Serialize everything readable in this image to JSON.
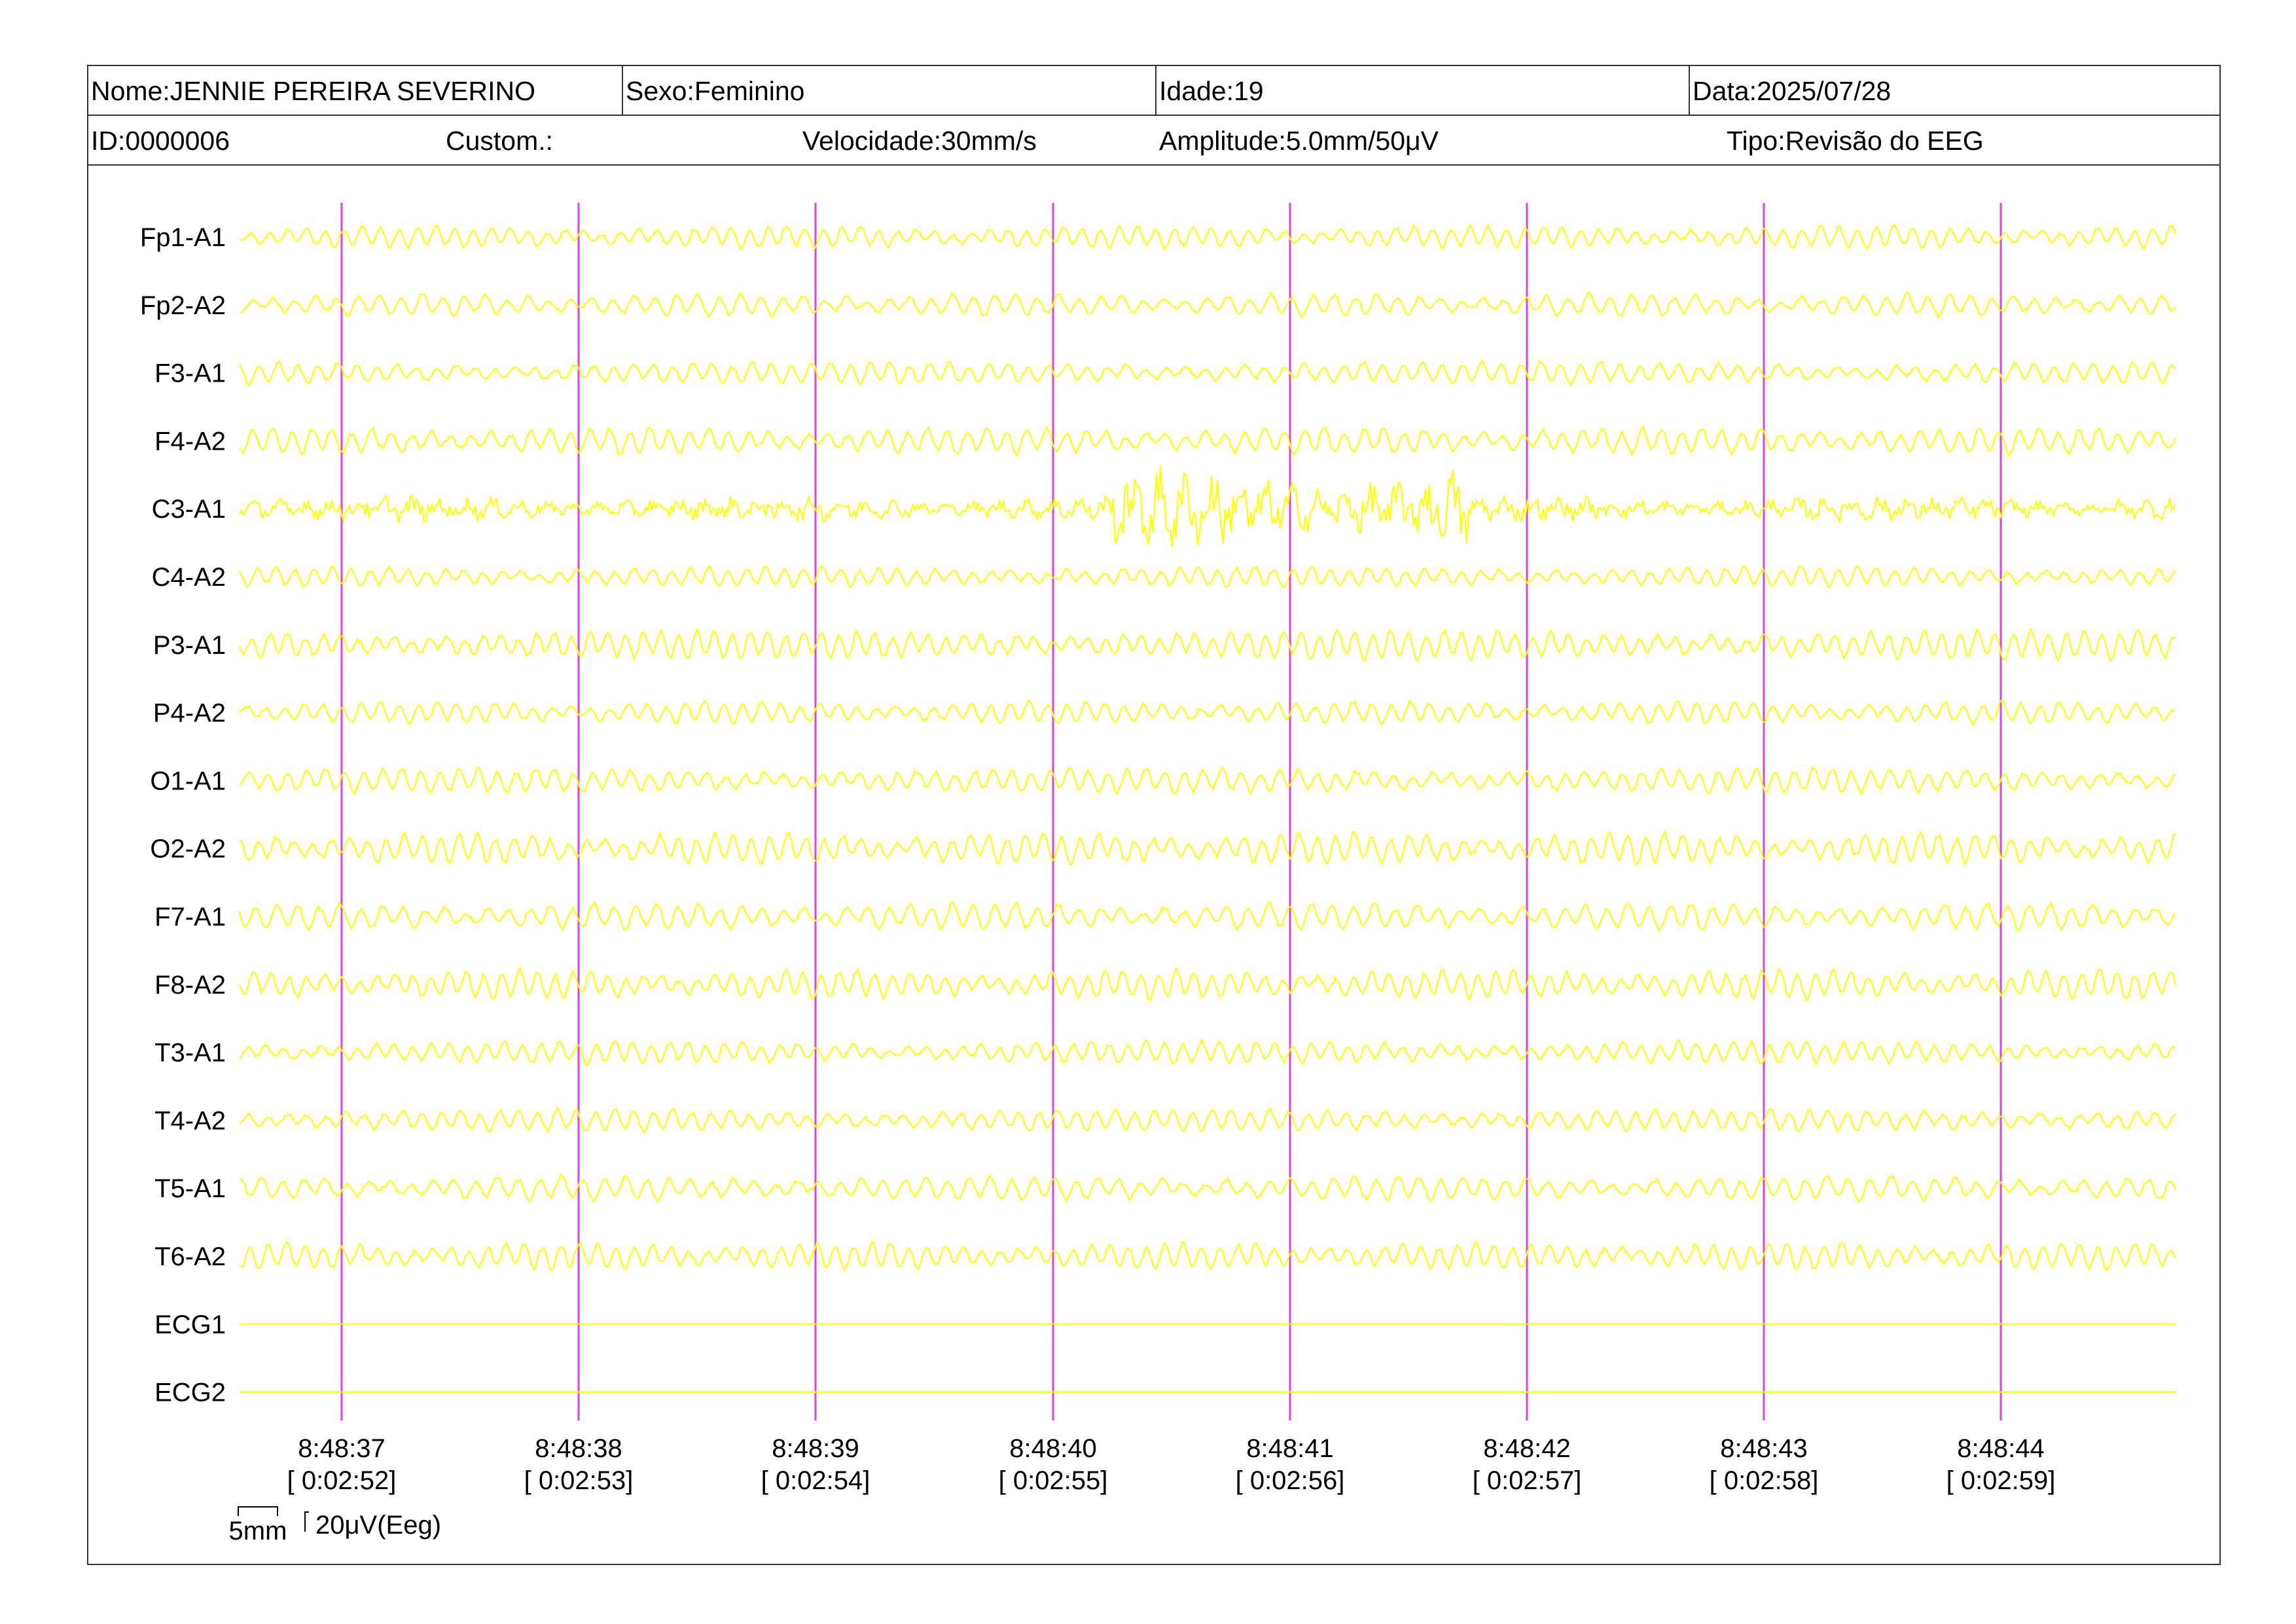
{
  "header": {
    "name": "Nome:JENNIE PEREIRA SEVERINO",
    "sex": "Sexo:Feminino",
    "age": "Idade:19",
    "date": "Data:2025/07/28",
    "id": "ID:0000006",
    "custom": "Custom.:",
    "speed": "Velocidade:30mm/s",
    "amplitude": "Amplitude:5.0mm/50μV",
    "type": "Tipo:Revisão do EEG"
  },
  "channels": [
    {
      "label": "Fp1-A1",
      "amp": 1.0,
      "type": "eeg"
    },
    {
      "label": "Fp2-A2",
      "amp": 1.0,
      "type": "eeg"
    },
    {
      "label": "F3-A1",
      "amp": 1.0,
      "type": "eeg"
    },
    {
      "label": "F4-A2",
      "amp": 1.2,
      "type": "eeg"
    },
    {
      "label": "C3-A1",
      "amp": 1.6,
      "type": "eeg-irregular"
    },
    {
      "label": "C4-A2",
      "amp": 0.9,
      "type": "eeg"
    },
    {
      "label": "P3-A1",
      "amp": 1.3,
      "type": "eeg"
    },
    {
      "label": "P4-A2",
      "amp": 1.0,
      "type": "eeg"
    },
    {
      "label": "O1-A1",
      "amp": 1.1,
      "type": "eeg"
    },
    {
      "label": "O2-A2",
      "amp": 1.4,
      "type": "eeg"
    },
    {
      "label": "F7-A1",
      "amp": 1.2,
      "type": "eeg"
    },
    {
      "label": "F8-A2",
      "amp": 1.3,
      "type": "eeg"
    },
    {
      "label": "T3-A1",
      "amp": 1.0,
      "type": "eeg"
    },
    {
      "label": "T4-A2",
      "amp": 1.0,
      "type": "eeg"
    },
    {
      "label": "T5-A1",
      "amp": 1.1,
      "type": "eeg"
    },
    {
      "label": "T6-A2",
      "amp": 1.2,
      "type": "eeg"
    },
    {
      "label": "ECG1",
      "amp": 0,
      "type": "flat"
    },
    {
      "label": "ECG2",
      "amp": 0,
      "type": "flat"
    }
  ],
  "time_marks": [
    {
      "clock": "8:48:37",
      "elapsed": "[ 0:02:52]"
    },
    {
      "clock": "8:48:38",
      "elapsed": "[ 0:02:53]"
    },
    {
      "clock": "8:48:39",
      "elapsed": "[ 0:02:54]"
    },
    {
      "clock": "8:48:40",
      "elapsed": "[ 0:02:55]"
    },
    {
      "clock": "8:48:41",
      "elapsed": "[ 0:02:56]"
    },
    {
      "clock": "8:48:42",
      "elapsed": "[ 0:02:57]"
    },
    {
      "clock": "8:48:43",
      "elapsed": "[ 0:02:58]"
    },
    {
      "clock": "8:48:44",
      "elapsed": "[ 0:02:59]"
    }
  ],
  "scale": {
    "time_label": "5mm",
    "amp_label": "20μV(Eeg)"
  },
  "colors": {
    "trace": "#ffff00",
    "marker": "#e040e0"
  }
}
